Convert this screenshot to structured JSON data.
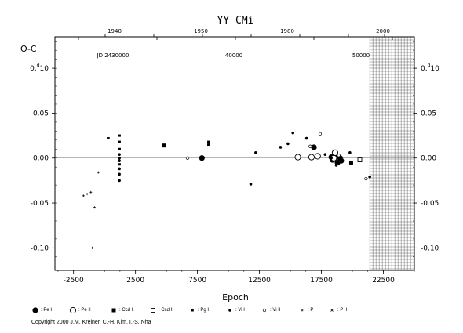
{
  "chart_data": {
    "type": "scatter",
    "title": "YY CMi",
    "xlabel": "Epoch",
    "ylabel": "O-C",
    "xlim": [
      -4000,
      25000
    ],
    "ylim": [
      -0.125,
      0.135
    ],
    "x_ticks": [
      "-2500",
      "2500",
      "7500",
      "12500",
      "17500",
      "22500"
    ],
    "y_ticks": [
      "0.10",
      "0.05",
      "0.00",
      "-0.05",
      "-0.10"
    ],
    "y_tick_values": [
      0.1,
      0.05,
      0.0,
      -0.05,
      -0.1
    ],
    "y_tick_first_prefix": "0.",
    "y_tick_first_sup": "d",
    "y_tick_first_rest": "10",
    "year_ticks": [
      "1940",
      "1950",
      "1960",
      "1970",
      "1980",
      "1990",
      "2000"
    ],
    "year_labels": [
      "1940",
      "1950",
      "1980",
      "2000"
    ],
    "jd_labels": [
      "JD 2430000",
      "40000",
      "50000"
    ],
    "hatched_from_epoch": 21400,
    "series": [
      {
        "key": "pe1",
        "name": ": Pe I",
        "marker": "filled-circle-large",
        "points": [
          [
            7860,
            0.0
          ],
          [
            16900,
            0.012
          ],
          [
            18400,
            -0.002
          ],
          [
            18600,
            0.003
          ],
          [
            18800,
            -0.005
          ],
          [
            19000,
            0.0
          ],
          [
            19100,
            -0.003
          ],
          [
            18300,
            0.001
          ]
        ]
      },
      {
        "key": "pe2",
        "name": ": Pe II",
        "marker": "open-circle-large",
        "points": [
          [
            15600,
            0.001
          ],
          [
            16700,
            0.001
          ],
          [
            17200,
            0.002
          ],
          [
            18600,
            0.006
          ],
          [
            18500,
            0.0
          ]
        ]
      },
      {
        "key": "ccd1",
        "name": ": Ccd I",
        "marker": "filled-square",
        "points": [
          [
            4800,
            0.014
          ],
          [
            19900,
            -0.005
          ]
        ]
      },
      {
        "key": "ccd2",
        "name": ": Ccd II",
        "marker": "open-square",
        "points": [
          [
            20600,
            -0.002
          ]
        ]
      },
      {
        "key": "pg1",
        "name": ": Pg I",
        "marker": "filled-square-small",
        "points": [
          [
            300,
            0.022
          ],
          [
            1200,
            0.025
          ],
          [
            1200,
            0.018
          ],
          [
            1200,
            0.01
          ],
          [
            1200,
            -0.007
          ],
          [
            8400,
            0.015
          ],
          [
            8400,
            0.018
          ]
        ]
      },
      {
        "key": "vi1",
        "name": ": Vi I",
        "marker": "filled-dot",
        "points": [
          [
            1200,
            0.004
          ],
          [
            1200,
            0.0
          ],
          [
            1200,
            -0.003
          ],
          [
            1200,
            -0.012
          ],
          [
            1200,
            -0.018
          ],
          [
            1200,
            -0.025
          ],
          [
            11800,
            -0.029
          ],
          [
            12200,
            0.006
          ],
          [
            14200,
            0.012
          ],
          [
            14800,
            0.016
          ],
          [
            15200,
            0.028
          ],
          [
            16300,
            0.022
          ],
          [
            17800,
            0.004
          ],
          [
            18300,
            0.0
          ],
          [
            18700,
            -0.008
          ],
          [
            19800,
            0.006
          ],
          [
            21400,
            -0.021
          ]
        ]
      },
      {
        "key": "vi2",
        "name": ": Vi II",
        "marker": "open-dot",
        "points": [
          [
            6700,
            0.0
          ],
          [
            16600,
            0.013
          ],
          [
            17400,
            0.027
          ],
          [
            18900,
            0.003
          ],
          [
            21100,
            -0.023
          ]
        ]
      },
      {
        "key": "p1",
        "name": ": P I",
        "marker": "plus",
        "points": [
          [
            -1700,
            -0.042
          ],
          [
            -1400,
            -0.04
          ],
          [
            -1100,
            -0.038
          ],
          [
            -800,
            -0.055
          ],
          [
            -500,
            -0.016
          ],
          [
            -1000,
            -0.1
          ]
        ]
      },
      {
        "key": "p2",
        "name": ": P II",
        "marker": "cross"
      }
    ]
  },
  "copyright": "Copyright 2000 J.M. Kreiner, C.-H. Kim, I.-S. Nha"
}
